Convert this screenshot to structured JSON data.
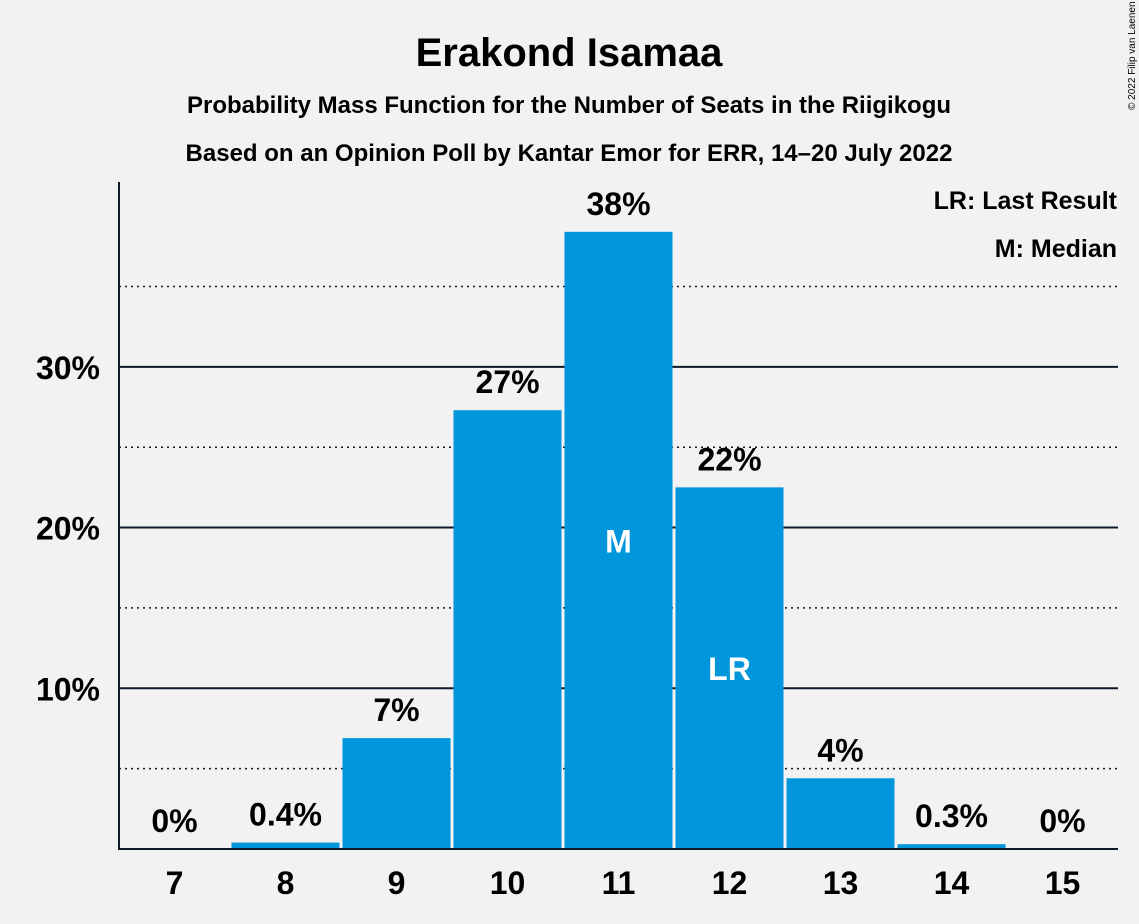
{
  "chart_data": {
    "type": "bar",
    "title": "Erakond Isamaa",
    "subtitle": "Probability Mass Function for the Number of Seats in the Riigikogu",
    "subtitle2": "Based on an Opinion Poll by Kantar Emor for ERR, 14–20 July 2022",
    "copyright": "© 2022 Filip van Laenen",
    "legend": [
      "LR: Last Result",
      "M: Median"
    ],
    "categories": [
      "7",
      "8",
      "9",
      "10",
      "11",
      "12",
      "13",
      "14",
      "15"
    ],
    "values": [
      0,
      0.4,
      6.9,
      27.3,
      38.4,
      22.5,
      4.4,
      0.3,
      0
    ],
    "data_labels": [
      "0%",
      "0.4%",
      "7%",
      "27%",
      "38%",
      "22%",
      "4%",
      "0.3%",
      "0%"
    ],
    "bar_markers": {
      "11": "M",
      "12": "LR"
    },
    "yticks": [
      10,
      20,
      30
    ],
    "ytick_labels": [
      "10%",
      "20%",
      "30%"
    ],
    "minor_gridlines": [
      5,
      15,
      25,
      35
    ],
    "ylim": [
      0,
      41.5
    ],
    "bar_color": "#0096db"
  }
}
